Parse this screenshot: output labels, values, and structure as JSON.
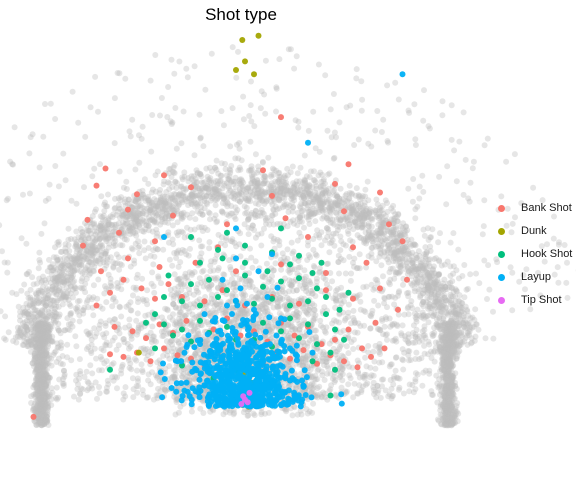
{
  "chart_data": {
    "type": "scatter",
    "title": "Shot type",
    "xlabel": "",
    "ylabel": "",
    "xlim": [
      -250,
      250
    ],
    "ylim": [
      -47,
      420
    ],
    "grid": false,
    "legend_position": "right",
    "background_series": {
      "name": "",
      "color": "#bdbdbd",
      "description_points": "all other shots, drawn as translucent grey points"
    },
    "series": [
      {
        "name": "Bank Shot",
        "color": "#f8766d",
        "points": [
          [
            -150,
            53
          ],
          [
            -135,
            50
          ],
          [
            -120,
            55
          ],
          [
            -105,
            45
          ],
          [
            -90,
            60
          ],
          [
            -75,
            52
          ],
          [
            -60,
            48
          ],
          [
            -45,
            40
          ],
          [
            -30,
            55
          ],
          [
            -15,
            35
          ],
          [
            -145,
            85
          ],
          [
            -125,
            80
          ],
          [
            -110,
            72
          ],
          [
            -95,
            88
          ],
          [
            -80,
            78
          ],
          [
            -65,
            92
          ],
          [
            -50,
            70
          ],
          [
            -35,
            82
          ],
          [
            -20,
            95
          ],
          [
            -5,
            75
          ],
          [
            10,
            80
          ],
          [
            25,
            68
          ],
          [
            40,
            90
          ],
          [
            55,
            75
          ],
          [
            70,
            85
          ],
          [
            85,
            65
          ],
          [
            100,
            70
          ],
          [
            115,
            82
          ],
          [
            130,
            60
          ],
          [
            145,
            90
          ],
          [
            20,
            42
          ],
          [
            35,
            55
          ],
          [
            50,
            48
          ],
          [
            65,
            58
          ],
          [
            80,
            42
          ],
          [
            95,
            52
          ],
          [
            110,
            45
          ],
          [
            125,
            38
          ],
          [
            140,
            50
          ],
          [
            155,
            60
          ],
          [
            -165,
            110
          ],
          [
            -150,
            125
          ],
          [
            -135,
            140
          ],
          [
            -115,
            130
          ],
          [
            -100,
            118
          ],
          [
            -85,
            135
          ],
          [
            -70,
            120
          ],
          [
            -45,
            115
          ],
          [
            -25,
            128
          ],
          [
            0,
            110
          ],
          [
            30,
            120
          ],
          [
            60,
            112
          ],
          [
            90,
            128
          ],
          [
            120,
            118
          ],
          [
            150,
            130
          ],
          [
            170,
            105
          ],
          [
            -160,
            150
          ],
          [
            -130,
            165
          ],
          [
            -95,
            155
          ],
          [
            -55,
            160
          ],
          [
            -10,
            150
          ],
          [
            40,
            158
          ],
          [
            90,
            148
          ],
          [
            135,
            160
          ],
          [
            180,
            140
          ],
          [
            -180,
            180
          ],
          [
            -140,
            195
          ],
          [
            -100,
            185
          ],
          [
            -30,
            178
          ],
          [
            70,
            190
          ],
          [
            120,
            178
          ],
          [
            175,
            185
          ],
          [
            -175,
            210
          ],
          [
            -130,
            222
          ],
          [
            -80,
            215
          ],
          [
            -20,
            205
          ],
          [
            45,
            212
          ],
          [
            110,
            220
          ],
          [
            160,
            205
          ],
          [
            -165,
            250
          ],
          [
            -120,
            240
          ],
          [
            -60,
            248
          ],
          [
            30,
            238
          ],
          [
            100,
            252
          ],
          [
            150,
            242
          ],
          [
            -155,
            270
          ],
          [
            -90,
            262
          ],
          [
            20,
            268
          ],
          [
            115,
            275
          ],
          [
            0,
            -5
          ],
          [
            -235,
            -20
          ],
          [
            40,
            330
          ]
        ]
      },
      {
        "name": "Dunk",
        "color": "#a3a500",
        "points": [
          [
            0,
            -2
          ],
          [
            3,
            5
          ],
          [
            -4,
            8
          ],
          [
            6,
            -4
          ],
          [
            -2,
            12
          ],
          [
            1,
            18
          ],
          [
            -6,
            0
          ],
          [
            5,
            10
          ],
          [
            -3,
            -6
          ],
          [
            2,
            22
          ],
          [
            -1,
            30
          ],
          [
            4,
            -8
          ],
          [
            -8,
            4
          ],
          [
            8,
            2
          ],
          [
            0,
            15
          ],
          [
            -5,
            25
          ],
          [
            7,
            20
          ],
          [
            -2,
            35
          ],
          [
            3,
            40
          ],
          [
            -118,
            55
          ],
          [
            -3,
            420
          ],
          [
            15,
            425
          ],
          [
            0,
            395
          ],
          [
            10,
            380
          ],
          [
            -10,
            385
          ]
        ]
      },
      {
        "name": "Hook Shot",
        "color": "#00bf7d",
        "points": [
          [
            -100,
            100
          ],
          [
            -90,
            88
          ],
          [
            -80,
            75
          ],
          [
            -70,
            82
          ],
          [
            -60,
            68
          ],
          [
            -50,
            92
          ],
          [
            -40,
            78
          ],
          [
            -30,
            60
          ],
          [
            -20,
            85
          ],
          [
            -10,
            70
          ],
          [
            10,
            70
          ],
          [
            20,
            90
          ],
          [
            30,
            62
          ],
          [
            40,
            80
          ],
          [
            50,
            95
          ],
          [
            60,
            72
          ],
          [
            70,
            88
          ],
          [
            80,
            65
          ],
          [
            90,
            100
          ],
          [
            100,
            82
          ],
          [
            -90,
            120
          ],
          [
            -70,
            115
          ],
          [
            -50,
            110
          ],
          [
            -30,
            120
          ],
          [
            -10,
            115
          ],
          [
            10,
            112
          ],
          [
            30,
            118
          ],
          [
            50,
            110
          ],
          [
            70,
            115
          ],
          [
            90,
            120
          ],
          [
            -60,
            135
          ],
          [
            -40,
            140
          ],
          [
            -20,
            128
          ],
          [
            0,
            145
          ],
          [
            20,
            132
          ],
          [
            40,
            138
          ],
          [
            60,
            142
          ],
          [
            80,
            130
          ],
          [
            -50,
            160
          ],
          [
            -25,
            165
          ],
          [
            0,
            160
          ],
          [
            25,
            150
          ],
          [
            50,
            158
          ],
          [
            75,
            148
          ],
          [
            -30,
            175
          ],
          [
            0,
            180
          ],
          [
            30,
            172
          ],
          [
            60,
            168
          ],
          [
            -10,
            35
          ],
          [
            15,
            42
          ],
          [
            -35,
            25
          ],
          [
            35,
            30
          ],
          [
            -70,
            40
          ],
          [
            75,
            45
          ],
          [
            95,
            55
          ],
          [
            -100,
            60
          ],
          [
            105,
            105
          ],
          [
            -110,
            90
          ],
          [
            115,
            125
          ],
          [
            -85,
            145
          ],
          [
            85,
            160
          ],
          [
            95,
            5
          ],
          [
            -150,
            35
          ],
          [
            40,
            200
          ],
          [
            -20,
            195
          ],
          [
            100,
            35
          ],
          [
            110,
            70
          ],
          [
            -60,
            190
          ]
        ]
      },
      {
        "name": "Layup",
        "color": "#00b0f6",
        "cluster": {
          "center": [
            0,
            0
          ],
          "spread": [
            30,
            30
          ],
          "count": 700
        },
        "points": [
          [
            -15,
            60
          ],
          [
            20,
            55
          ],
          [
            -40,
            35
          ],
          [
            45,
            30
          ],
          [
            -55,
            10
          ],
          [
            55,
            5
          ],
          [
            -30,
            80
          ],
          [
            35,
            75
          ],
          [
            0,
            90
          ],
          [
            10,
            105
          ],
          [
            -20,
            110
          ],
          [
            25,
            120
          ],
          [
            -5,
            130
          ],
          [
            40,
            95
          ],
          [
            -45,
            100
          ],
          [
            -25,
            140
          ],
          [
            15,
            150
          ],
          [
            -10,
            165
          ],
          [
            30,
            170
          ],
          [
            -65,
            20
          ],
          [
            65,
            15
          ],
          [
            -50,
            65
          ],
          [
            50,
            60
          ],
          [
            -75,
            45
          ],
          [
            75,
            55
          ],
          [
            -90,
            190
          ],
          [
            175,
            380
          ],
          [
            70,
            300
          ],
          [
            -10,
            200
          ]
        ]
      },
      {
        "name": "Tip Shot",
        "color": "#e76bf3",
        "points": [
          [
            0,
            0
          ],
          [
            3,
            -3
          ],
          [
            -2,
            4
          ],
          [
            5,
            8
          ],
          [
            -4,
            -5
          ]
        ]
      }
    ]
  }
}
